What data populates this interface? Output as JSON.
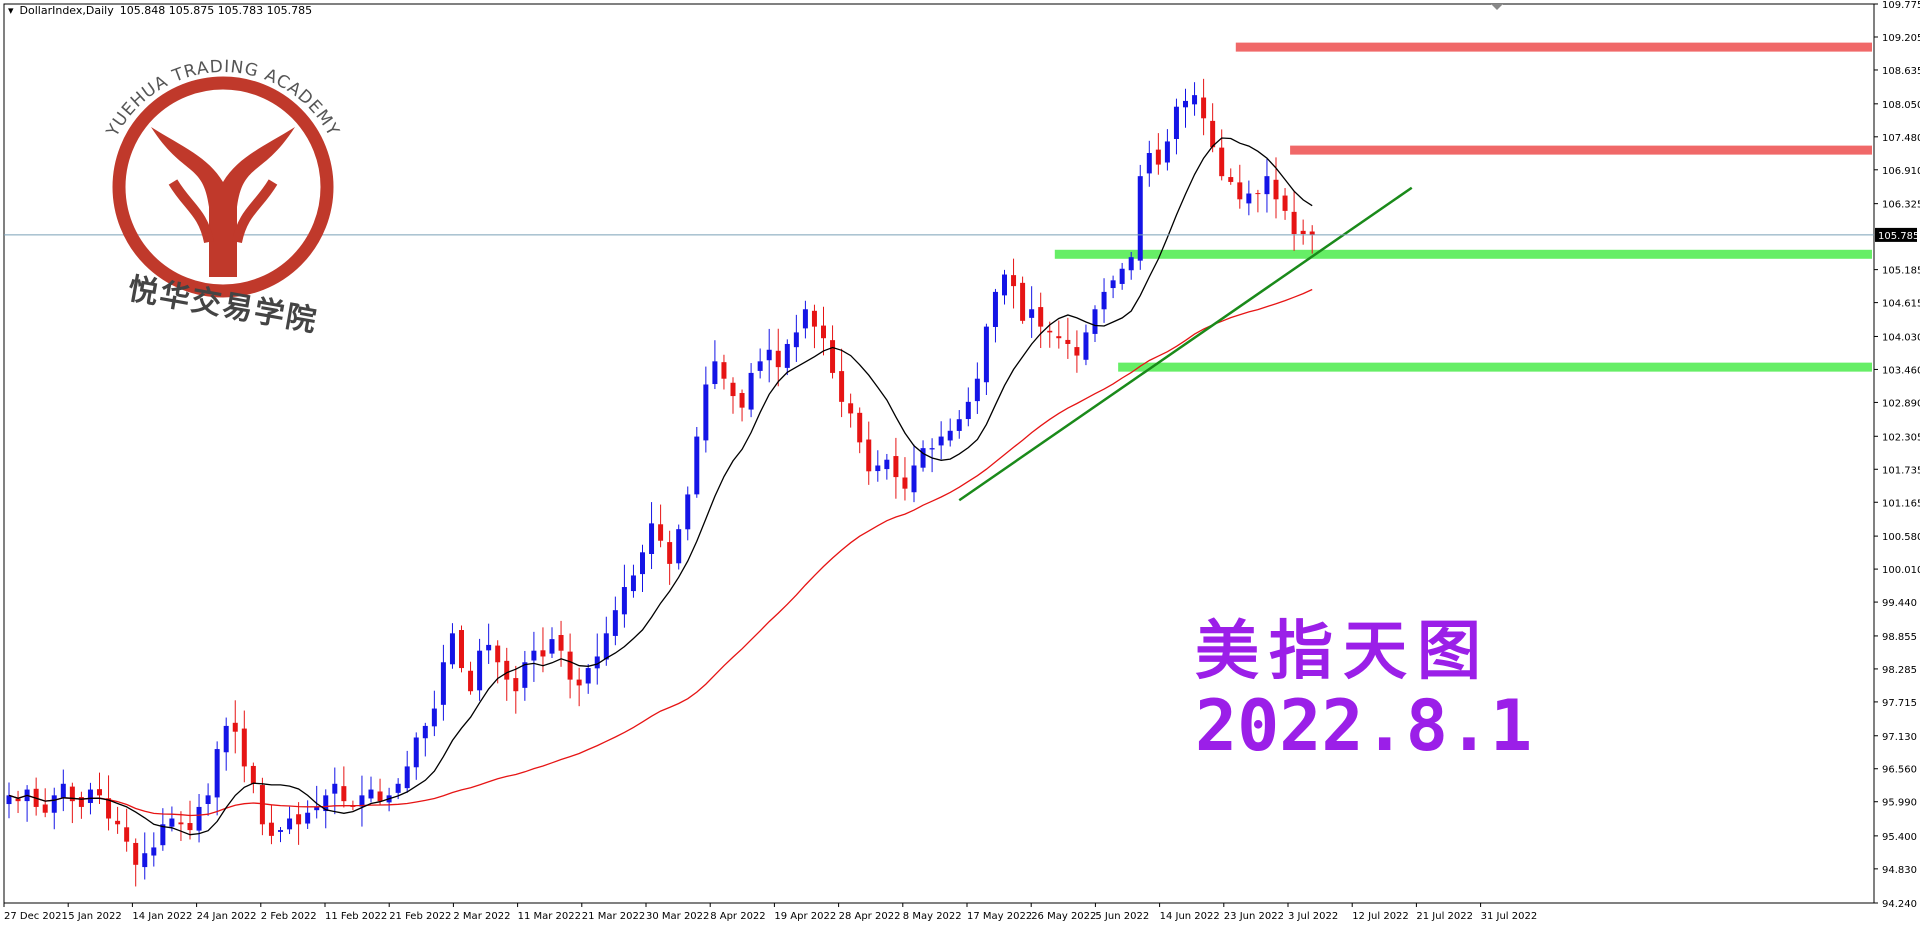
{
  "header": {
    "symbol": "DollarIndex,Daily",
    "ohlc": "105.848 105.875 105.783 105.785"
  },
  "logo": {
    "arc_text": "YUEHUA TRADING ACADEMY",
    "cn_text": "悦华交易学院",
    "color": "#c0392b"
  },
  "annotation": {
    "title_cn": "美指天图",
    "date": "2022.8.1",
    "color": "#9b1fe8"
  },
  "chart_data": {
    "type": "candlestick",
    "title": "",
    "ylim": [
      94.24,
      109.775
    ],
    "y_ticks": [
      109.775,
      109.205,
      108.635,
      108.05,
      107.48,
      106.91,
      106.325,
      105.185,
      104.615,
      104.03,
      103.46,
      102.89,
      102.305,
      101.735,
      101.165,
      100.58,
      100.01,
      99.44,
      98.855,
      98.285,
      97.715,
      97.13,
      96.56,
      95.99,
      95.4,
      94.83,
      94.24
    ],
    "x_ticks": [
      "27 Dec 2021",
      "5 Jan 2022",
      "14 Jan 2022",
      "24 Jan 2022",
      "2 Feb 2022",
      "11 Feb 2022",
      "21 Feb 2022",
      "2 Mar 2022",
      "11 Mar 2022",
      "21 Mar 2022",
      "30 Mar 2022",
      "8 Apr 2022",
      "19 Apr 2022",
      "28 Apr 2022",
      "8 May 2022",
      "17 May 2022",
      "26 May 2022",
      "5 Jun 2022",
      "14 Jun 2022",
      "23 Jun 2022",
      "3 Jul 2022",
      "12 Jul 2022",
      "21 Jul 2022",
      "31 Jul 2022"
    ],
    "current_price": 105.785,
    "current_price_label": "105.785",
    "up_color": "#1414e6",
    "down_color": "#e61414",
    "closes": [
      96.1,
      96.0,
      96.2,
      95.9,
      95.8,
      96.1,
      96.3,
      96.0,
      95.9,
      96.2,
      96.1,
      95.7,
      95.6,
      95.3,
      94.9,
      95.1,
      95.2,
      95.6,
      95.7,
      95.6,
      95.5,
      95.9,
      96.1,
      96.9,
      97.3,
      97.2,
      96.6,
      96.3,
      95.6,
      95.4,
      95.5,
      95.7,
      95.6,
      95.8,
      95.9,
      96.1,
      96.3,
      96.0,
      95.9,
      96.1,
      96.2,
      96.0,
      96.1,
      96.3,
      96.6,
      97.1,
      97.3,
      97.6,
      98.4,
      98.9,
      98.3,
      97.9,
      98.6,
      98.7,
      98.4,
      98.1,
      97.9,
      98.4,
      98.6,
      98.5,
      98.8,
      98.6,
      98.1,
      98.0,
      98.3,
      98.5,
      98.9,
      99.3,
      99.7,
      99.9,
      100.3,
      100.8,
      100.5,
      100.1,
      100.7,
      101.3,
      102.3,
      103.2,
      103.6,
      103.3,
      103.0,
      102.8,
      103.4,
      103.6,
      103.8,
      103.5,
      103.9,
      104.1,
      104.5,
      104.2,
      104.0,
      103.4,
      102.9,
      102.7,
      102.2,
      101.7,
      101.8,
      101.9,
      101.6,
      101.4,
      101.8,
      102.1,
      102.1,
      102.3,
      102.4,
      102.6,
      102.9,
      103.3,
      104.2,
      104.8,
      105.1,
      104.9,
      104.3,
      104.5,
      104.2,
      104.1,
      104.0,
      103.9,
      103.7,
      104.1,
      104.5,
      104.8,
      105.0,
      105.2,
      105.4,
      106.8,
      107.2,
      107.0,
      107.4,
      108.0,
      108.1,
      108.2,
      107.8,
      107.3,
      106.8,
      106.7,
      106.4,
      106.5,
      106.5,
      106.8,
      106.4,
      106.2,
      105.8,
      105.8,
      105.79
    ],
    "sma_fast_color": "#000000",
    "sma_slow_color": "#e61414",
    "zones": [
      {
        "price": 109.03,
        "color": "#f06868",
        "from_index": 136
      },
      {
        "price": 107.25,
        "color": "#f06868",
        "from_index": 142
      },
      {
        "price": 105.45,
        "color": "#66ee66",
        "from_index": 116
      },
      {
        "price": 103.5,
        "color": "#66ee66",
        "from_index": 123
      }
    ],
    "trendline": {
      "from": [
        105,
        101.2
      ],
      "to": [
        155,
        106.6
      ],
      "color": "#1a8a1a"
    }
  }
}
